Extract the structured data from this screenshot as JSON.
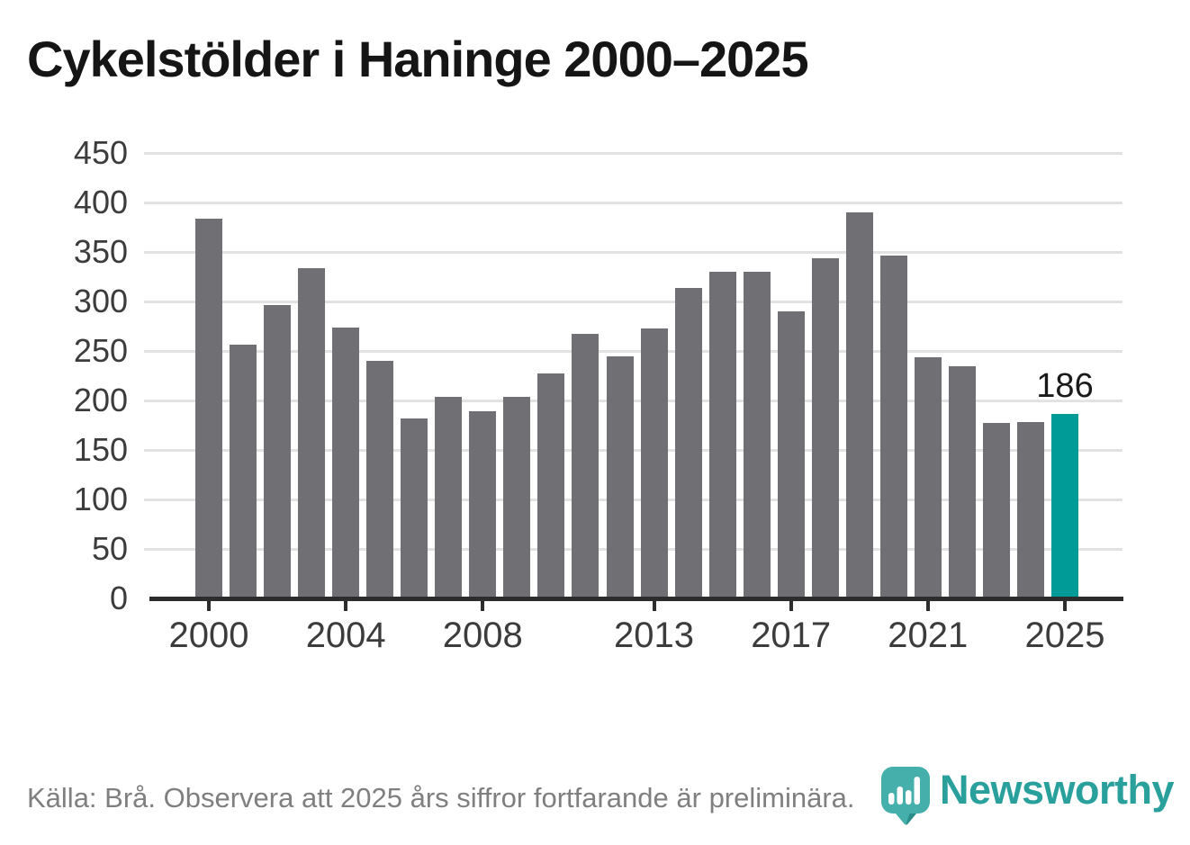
{
  "page": {
    "title": "Cykelstölder i Haninge 2000–2025"
  },
  "chart_data": {
    "type": "bar",
    "title": "Cykelstölder i Haninge 2000–2025",
    "categories": [
      2000,
      2001,
      2002,
      2003,
      2004,
      2005,
      2006,
      2007,
      2008,
      2009,
      2010,
      2011,
      2012,
      2013,
      2014,
      2015,
      2016,
      2017,
      2018,
      2019,
      2020,
      2021,
      2022,
      2023,
      2024,
      2025
    ],
    "values": [
      384,
      256,
      296,
      334,
      274,
      240,
      182,
      204,
      189,
      204,
      227,
      267,
      245,
      273,
      314,
      330,
      330,
      290,
      344,
      390,
      346,
      244,
      235,
      177,
      178,
      186
    ],
    "xlabel": "",
    "ylabel": "",
    "ylim": [
      0,
      450
    ],
    "yticks": [
      0,
      50,
      100,
      150,
      200,
      250,
      300,
      350,
      400,
      450
    ],
    "xticks": [
      2000,
      2004,
      2008,
      2013,
      2017,
      2021,
      2025
    ],
    "grid": "horizontal",
    "legend": "none",
    "bar_color": "#706f74",
    "highlight_index": 25,
    "highlight_color": "#009a97",
    "annotation": {
      "text": "186",
      "index": 25
    }
  },
  "footer": {
    "source": "Källa: Brå. Observera att 2025 års siffror fortfarande är preliminära."
  },
  "brand": {
    "name": "Newsworthy",
    "pin_color": "#0f9894",
    "pin_dark_color": "#14706e",
    "text_color": "#2aa09d"
  }
}
